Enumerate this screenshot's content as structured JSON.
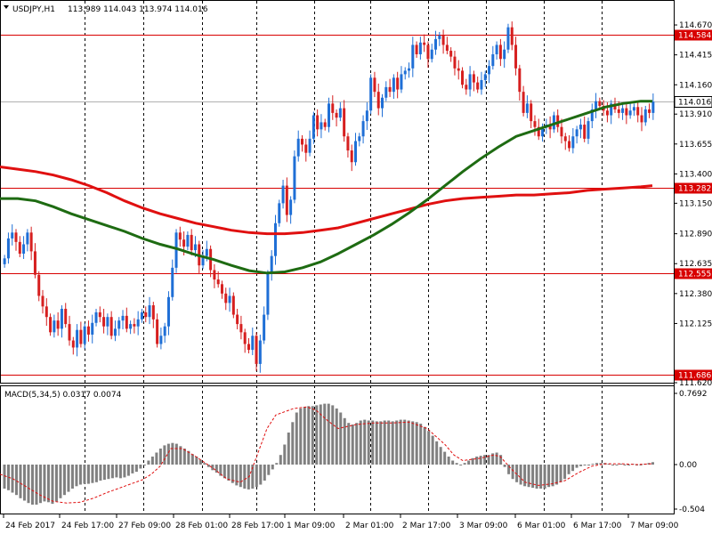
{
  "header": {
    "symbol": "USDJPY,H1",
    "ohlc": "113.989 114.043 113.974 114.016"
  },
  "macd": {
    "label": "MACD(5,34,5) 0.0317 0.0074",
    "scale_labels": [
      "0.7692",
      "0.00",
      "-0.504"
    ]
  },
  "colors": {
    "up": "#1f6fd6",
    "down": "#d61f1f",
    "ma_fast": "#1e6b12",
    "ma_slow": "#e01010",
    "hline": "#d80000",
    "grid": "#000000",
    "hist": "#808080",
    "signal": "#e01010"
  },
  "chart_data": {
    "type": "candlestick",
    "symbol": "USDJPY",
    "timeframe": "H1",
    "price_axis": {
      "range": [
        111.62,
        114.86
      ],
      "ticks": [
        "114.670",
        "114.415",
        "114.160",
        "113.910",
        "113.655",
        "113.400",
        "113.150",
        "112.890",
        "112.635",
        "112.380",
        "112.125",
        "111.620"
      ]
    },
    "time_labels": [
      "24 Feb 2017",
      "24 Feb 17:00",
      "27 Feb 09:00",
      "28 Feb 01:00",
      "28 Feb 17:00",
      "1 Mar 09:00",
      "2 Mar 01:00",
      "2 Mar 17:00",
      "3 Mar 09:00",
      "6 Mar 01:00",
      "6 Mar 17:00",
      "7 Mar 09:00"
    ],
    "horizontal_levels": [
      {
        "value": "114.584"
      },
      {
        "value": "113.282"
      },
      {
        "value": "112.555"
      },
      {
        "value": "111.686"
      }
    ],
    "current_price": "114.016",
    "closes": [
      112.68,
      112.85,
      112.9,
      112.82,
      112.72,
      112.8,
      112.9,
      112.74,
      112.54,
      112.36,
      112.27,
      112.18,
      112.05,
      112.15,
      112.08,
      112.25,
      112.12,
      111.98,
      111.92,
      112.07,
      111.95,
      112.1,
      112.03,
      112.13,
      112.22,
      112.18,
      112.1,
      112.18,
      112.02,
      112.08,
      112.15,
      112.19,
      112.08,
      112.12,
      112.1,
      112.16,
      112.22,
      112.18,
      112.28,
      112.16,
      111.95,
      112.02,
      112.1,
      112.35,
      112.6,
      112.9,
      112.84,
      112.78,
      112.88,
      112.75,
      112.8,
      112.62,
      112.7,
      112.76,
      112.58,
      112.5,
      112.46,
      112.38,
      112.3,
      112.36,
      112.2,
      112.12,
      112.05,
      111.95,
      111.9,
      112.02,
      111.78,
      111.98,
      112.2,
      112.55,
      112.7,
      112.98,
      113.15,
      113.3,
      113.05,
      113.18,
      113.55,
      113.7,
      113.65,
      113.58,
      113.7,
      113.9,
      113.78,
      113.84,
      113.8,
      114.0,
      113.92,
      113.88,
      113.96,
      113.72,
      113.6,
      113.5,
      113.68,
      113.72,
      113.85,
      113.94,
      114.22,
      114.1,
      113.96,
      114.05,
      114.14,
      114.1,
      114.22,
      114.12,
      114.25,
      114.28,
      114.3,
      114.5,
      114.42,
      114.52,
      114.5,
      114.38,
      114.46,
      114.55,
      114.58,
      114.5,
      114.45,
      114.4,
      114.3,
      114.28,
      114.16,
      114.12,
      114.25,
      114.18,
      114.12,
      114.2,
      114.25,
      114.32,
      114.42,
      114.5,
      114.38,
      114.46,
      114.65,
      114.5,
      114.3,
      114.1,
      113.92,
      114.0,
      113.85,
      113.8,
      113.72,
      113.8,
      113.82,
      113.78,
      113.9,
      113.8,
      113.72,
      113.68,
      113.62,
      113.72,
      113.78,
      113.82,
      113.7,
      113.85,
      113.95,
      114.02,
      113.98,
      113.94,
      113.9,
      114.0,
      113.95,
      113.92,
      113.96,
      113.9,
      113.94,
      113.97,
      113.9,
      113.84,
      113.95,
      113.92,
      114.016
    ],
    "ma_fast_curve": [
      [
        0,
        113.19
      ],
      [
        20,
        113.19
      ],
      [
        40,
        113.17
      ],
      [
        60,
        113.12
      ],
      [
        80,
        113.06
      ],
      [
        100,
        113.01
      ],
      [
        120,
        112.96
      ],
      [
        140,
        112.91
      ],
      [
        160,
        112.85
      ],
      [
        180,
        112.8
      ],
      [
        200,
        112.76
      ],
      [
        220,
        112.71
      ],
      [
        240,
        112.67
      ],
      [
        260,
        112.62
      ],
      [
        280,
        112.575
      ],
      [
        300,
        112.555
      ],
      [
        320,
        112.565
      ],
      [
        340,
        112.6
      ],
      [
        360,
        112.65
      ],
      [
        380,
        112.72
      ],
      [
        400,
        112.8
      ],
      [
        420,
        112.88
      ],
      [
        440,
        112.97
      ],
      [
        460,
        113.07
      ],
      [
        480,
        113.18
      ],
      [
        500,
        113.3
      ],
      [
        520,
        113.42
      ],
      [
        540,
        113.53
      ],
      [
        560,
        113.63
      ],
      [
        580,
        113.72
      ],
      [
        600,
        113.77
      ],
      [
        620,
        113.82
      ],
      [
        640,
        113.87
      ],
      [
        660,
        113.92
      ],
      [
        680,
        113.97
      ],
      [
        700,
        114.0
      ],
      [
        720,
        114.02
      ],
      [
        733,
        114.02
      ]
    ],
    "ma_slow_curve": [
      [
        0,
        113.46
      ],
      [
        20,
        113.44
      ],
      [
        40,
        113.42
      ],
      [
        60,
        113.39
      ],
      [
        80,
        113.35
      ],
      [
        100,
        113.3
      ],
      [
        120,
        113.24
      ],
      [
        140,
        113.17
      ],
      [
        160,
        113.11
      ],
      [
        180,
        113.06
      ],
      [
        200,
        113.02
      ],
      [
        220,
        112.98
      ],
      [
        240,
        112.95
      ],
      [
        260,
        112.92
      ],
      [
        280,
        112.9
      ],
      [
        300,
        112.89
      ],
      [
        320,
        112.89
      ],
      [
        340,
        112.9
      ],
      [
        360,
        112.92
      ],
      [
        380,
        112.94
      ],
      [
        400,
        112.98
      ],
      [
        420,
        113.02
      ],
      [
        440,
        113.06
      ],
      [
        460,
        113.1
      ],
      [
        480,
        113.14
      ],
      [
        500,
        113.17
      ],
      [
        520,
        113.19
      ],
      [
        540,
        113.2
      ],
      [
        560,
        113.21
      ],
      [
        580,
        113.22
      ],
      [
        600,
        113.22
      ],
      [
        620,
        113.23
      ],
      [
        640,
        113.24
      ],
      [
        660,
        113.26
      ],
      [
        680,
        113.27
      ],
      [
        700,
        113.28
      ],
      [
        720,
        113.29
      ],
      [
        733,
        113.3
      ]
    ],
    "macd_hist": [
      -0.3,
      -0.32,
      -0.35,
      -0.38,
      -0.42,
      -0.45,
      -0.48,
      -0.5,
      -0.5,
      -0.48,
      -0.46,
      -0.47,
      -0.49,
      -0.46,
      -0.42,
      -0.38,
      -0.34,
      -0.3,
      -0.27,
      -0.25,
      -0.24,
      -0.24,
      -0.23,
      -0.22,
      -0.2,
      -0.19,
      -0.18,
      -0.17,
      -0.16,
      -0.17,
      -0.16,
      -0.14,
      -0.11,
      -0.09,
      -0.05,
      0.0,
      0.05,
      0.1,
      0.15,
      0.2,
      0.24,
      0.26,
      0.27,
      0.26,
      0.23,
      0.2,
      0.17,
      0.13,
      0.1,
      0.06,
      0.02,
      -0.03,
      -0.07,
      -0.1,
      -0.14,
      -0.17,
      -0.2,
      -0.23,
      -0.26,
      -0.28,
      -0.3,
      -0.31,
      -0.3,
      -0.28,
      -0.25,
      -0.2,
      -0.13,
      -0.06,
      0.02,
      0.12,
      0.25,
      0.4,
      0.53,
      0.65,
      0.7,
      0.72,
      0.73,
      0.73,
      0.74,
      0.75,
      0.76,
      0.76,
      0.74,
      0.7,
      0.65,
      0.58,
      0.52,
      0.5,
      0.52,
      0.55,
      0.56,
      0.55,
      0.55,
      0.54,
      0.54,
      0.55,
      0.55,
      0.54,
      0.55,
      0.56,
      0.56,
      0.55,
      0.54,
      0.53,
      0.51,
      0.47,
      0.42,
      0.36,
      0.29,
      0.22,
      0.16,
      0.1,
      0.05,
      0.02,
      0.0,
      0.02,
      0.05,
      0.08,
      0.1,
      0.11,
      0.12,
      0.12,
      0.14,
      0.15,
      0.12,
      -0.03,
      -0.12,
      -0.18,
      -0.22,
      -0.25,
      -0.27,
      -0.28,
      -0.29,
      -0.3,
      -0.3,
      -0.3,
      -0.28,
      -0.27,
      -0.25,
      -0.22,
      -0.18,
      -0.12,
      -0.08,
      -0.04,
      -0.02,
      -0.01,
      0.0,
      0.01,
      0.02,
      0.02,
      0.02,
      0.01,
      0.0,
      0.0,
      0.01,
      0.0,
      0.0,
      0.01,
      0.0,
      0.0,
      0.01,
      0.02,
      0.03
    ],
    "macd_signal": [
      [
        0,
        -0.12
      ],
      [
        15,
        -0.18
      ],
      [
        30,
        -0.28
      ],
      [
        45,
        -0.38
      ],
      [
        60,
        -0.46
      ],
      [
        75,
        -0.48
      ],
      [
        90,
        -0.47
      ],
      [
        105,
        -0.42
      ],
      [
        120,
        -0.35
      ],
      [
        140,
        -0.27
      ],
      [
        160,
        -0.19
      ],
      [
        170,
        -0.12
      ],
      [
        180,
        -0.02
      ],
      [
        192,
        0.2
      ],
      [
        205,
        0.2
      ],
      [
        220,
        0.1
      ],
      [
        240,
        -0.05
      ],
      [
        255,
        -0.18
      ],
      [
        270,
        -0.22
      ],
      [
        280,
        -0.15
      ],
      [
        290,
        0.15
      ],
      [
        300,
        0.45
      ],
      [
        310,
        0.62
      ],
      [
        330,
        0.7
      ],
      [
        345,
        0.72
      ],
      [
        355,
        0.68
      ],
      [
        368,
        0.55
      ],
      [
        380,
        0.45
      ],
      [
        400,
        0.5
      ],
      [
        420,
        0.52
      ],
      [
        440,
        0.52
      ],
      [
        460,
        0.53
      ],
      [
        480,
        0.45
      ],
      [
        500,
        0.25
      ],
      [
        510,
        0.12
      ],
      [
        520,
        0.05
      ],
      [
        540,
        0.08
      ],
      [
        555,
        0.12
      ],
      [
        562,
        0.1
      ],
      [
        575,
        -0.06
      ],
      [
        590,
        -0.22
      ],
      [
        605,
        -0.26
      ],
      [
        620,
        -0.24
      ],
      [
        635,
        -0.2
      ],
      [
        650,
        -0.1
      ],
      [
        665,
        -0.02
      ],
      [
        680,
        0.01
      ],
      [
        700,
        0.01
      ],
      [
        715,
        0.0
      ],
      [
        732,
        0.01
      ]
    ]
  }
}
